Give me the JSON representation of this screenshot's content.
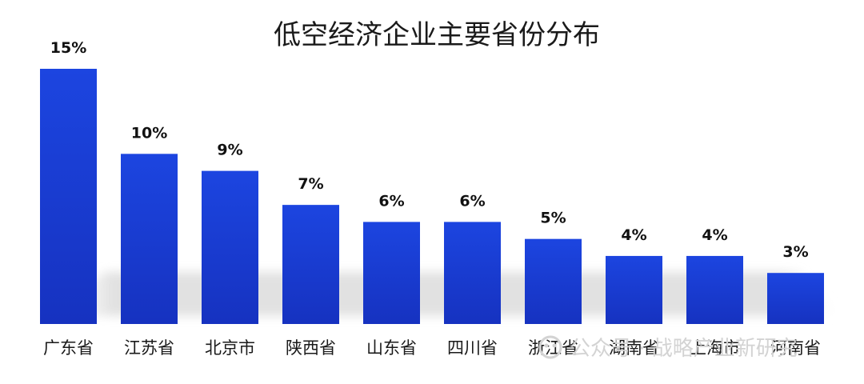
{
  "watermark": "公众号 · 战略产业新研究",
  "chart_data": {
    "type": "bar",
    "title": "低空经济企业主要省份分布",
    "categories": [
      "广东省",
      "江苏省",
      "北京市",
      "陕西省",
      "山东省",
      "四川省",
      "浙江省",
      "湖南省",
      "上海市",
      "河南省"
    ],
    "values": [
      15,
      10,
      9,
      7,
      6,
      6,
      5,
      4,
      4,
      3
    ],
    "value_labels": [
      "15%",
      "10%",
      "9%",
      "7%",
      "6%",
      "6%",
      "5%",
      "4%",
      "4%",
      "3%"
    ],
    "xlabel": "",
    "ylabel": "",
    "ylim": [
      0,
      15
    ],
    "grid": false,
    "bar_color": "#1a3fd6",
    "bar_color_dark": "#1530b8"
  }
}
